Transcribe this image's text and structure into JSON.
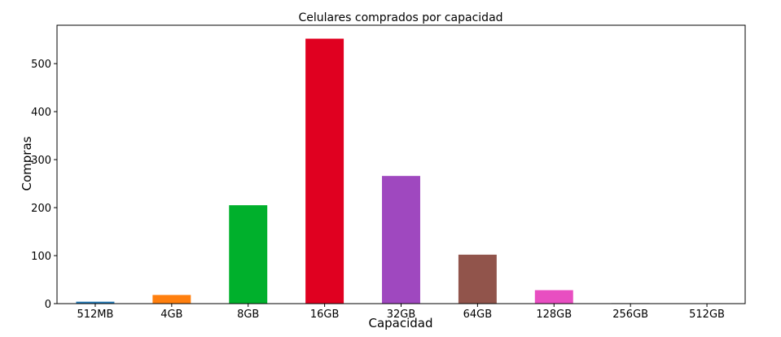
{
  "chart_data": {
    "type": "bar",
    "title": "Celulares comprados por capacidad",
    "xlabel": "Capacidad",
    "ylabel": "Compras",
    "categories": [
      "512MB",
      "4GB",
      "8GB",
      "16GB",
      "32GB",
      "64GB",
      "128GB",
      "256GB",
      "512GB"
    ],
    "values": [
      4,
      18,
      205,
      552,
      266,
      102,
      28,
      1,
      0
    ],
    "colors": [
      "#1f77b4",
      "#ff7f0e",
      "#00b02c",
      "#e00020",
      "#9f48bf",
      "#91544b",
      "#e84ec1",
      "#7f7f7f",
      "#bcbd22"
    ],
    "ylim": [
      0,
      580
    ],
    "yticks": [
      0,
      100,
      200,
      300,
      400,
      500
    ],
    "grid": false,
    "legend": "none"
  }
}
